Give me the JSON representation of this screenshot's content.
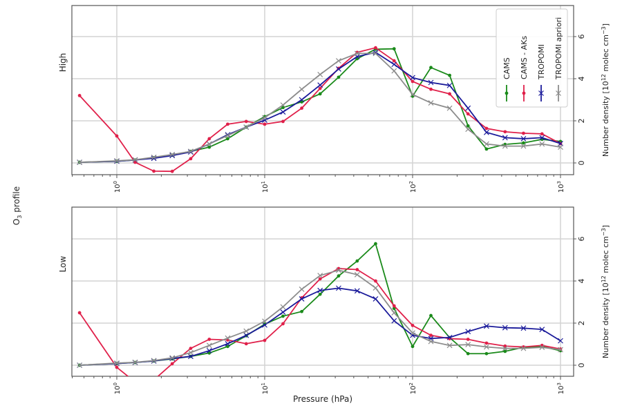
{
  "chart_data": [
    {
      "type": "line",
      "panel_label": "High",
      "xlabel": "",
      "ylabel": "Number density [10^12 molec cm^-3]",
      "ylabel_parts": {
        "base": "Number density [10",
        "exp1": "12",
        "mid": " molec cm",
        "exp2": "−3",
        "end": "]"
      },
      "x_scale": "log",
      "xlim": [
        0.5,
        1230
      ],
      "ylim": [
        -0.55,
        7.5
      ],
      "x_ticks": [
        {
          "base": "10",
          "exp": "0",
          "value": 1
        },
        {
          "base": "10",
          "exp": "1",
          "value": 10
        },
        {
          "base": "10",
          "exp": "2",
          "value": 100
        },
        {
          "base": "10",
          "exp": "3",
          "value": 1000
        }
      ],
      "y_ticks": [
        0,
        2,
        4,
        6
      ],
      "grid": true,
      "legend": "top-right",
      "x": [
        0.56,
        1,
        1.33,
        1.78,
        2.37,
        3.16,
        4.22,
        5.62,
        7.5,
        10,
        13.3,
        17.8,
        23.7,
        31.6,
        42.2,
        56.2,
        75,
        100,
        133,
        178,
        237,
        316,
        422,
        562,
        750,
        1000
      ],
      "series": [
        {
          "name": "CAMS",
          "color": "#1a8a1a",
          "marker": "dot",
          "values": [
            0.03,
            0.08,
            0.14,
            0.25,
            0.37,
            0.55,
            0.75,
            1.15,
            1.7,
            2.2,
            2.63,
            2.9,
            3.28,
            4.07,
            4.95,
            5.4,
            5.42,
            3.17,
            4.53,
            4.16,
            1.76,
            0.66,
            0.88,
            0.95,
            1.12,
            1.02
          ]
        },
        {
          "name": "CAMS - AKs",
          "color": "#e0204a",
          "marker": "dot",
          "values": [
            3.2,
            1.28,
            0.03,
            -0.39,
            -0.4,
            0.2,
            1.15,
            1.84,
            1.97,
            1.84,
            1.97,
            2.6,
            3.54,
            4.49,
            5.25,
            5.47,
            4.85,
            3.87,
            3.5,
            3.28,
            2.33,
            1.64,
            1.48,
            1.41,
            1.38,
            0.92
          ]
        },
        {
          "name": "TROPOMI",
          "color": "#1a1a9a",
          "marker": "x",
          "values": [
            0.03,
            0.08,
            0.14,
            0.22,
            0.35,
            0.52,
            0.9,
            1.34,
            1.7,
            2.03,
            2.42,
            3.0,
            3.7,
            4.46,
            5.05,
            5.25,
            4.68,
            4.05,
            3.82,
            3.68,
            2.6,
            1.45,
            1.2,
            1.15,
            1.2,
            0.92
          ]
        },
        {
          "name": "TROPOMI apriori",
          "color": "#8c8c8c",
          "marker": "x",
          "values": [
            0.03,
            0.1,
            0.15,
            0.27,
            0.4,
            0.55,
            0.9,
            1.3,
            1.7,
            2.15,
            2.75,
            3.5,
            4.2,
            4.85,
            5.2,
            5.2,
            4.37,
            3.25,
            2.85,
            2.6,
            1.6,
            0.9,
            0.8,
            0.8,
            0.9,
            0.75
          ]
        }
      ]
    },
    {
      "type": "line",
      "panel_label": "Low",
      "xlabel": "Pressure (hPa)",
      "ylabel": "Number density [10^12 molec cm^-3]",
      "ylabel_parts": {
        "base": "Number density [10",
        "exp1": "12",
        "mid": " molec cm",
        "exp2": "−3",
        "end": "]"
      },
      "x_scale": "log",
      "xlim": [
        0.5,
        1230
      ],
      "ylim": [
        -0.55,
        7.5
      ],
      "x_ticks": [
        {
          "base": "10",
          "exp": "0",
          "value": 1
        },
        {
          "base": "10",
          "exp": "1",
          "value": 10
        },
        {
          "base": "10",
          "exp": "2",
          "value": 100
        },
        {
          "base": "10",
          "exp": "3",
          "value": 1000
        }
      ],
      "y_ticks": [
        0,
        2,
        4,
        6
      ],
      "grid": true,
      "x": [
        0.56,
        1,
        1.33,
        1.78,
        2.37,
        3.16,
        4.22,
        5.62,
        7.5,
        10,
        13.3,
        17.8,
        23.7,
        31.6,
        42.2,
        56.2,
        75,
        100,
        133,
        178,
        237,
        316,
        422,
        562,
        750,
        1000
      ],
      "series": [
        {
          "name": "CAMS",
          "color": "#1a8a1a",
          "marker": "dot",
          "values": [
            0.0,
            0.08,
            0.13,
            0.2,
            0.3,
            0.42,
            0.58,
            0.89,
            1.4,
            1.95,
            2.33,
            2.55,
            3.37,
            4.24,
            4.95,
            5.77,
            2.7,
            0.89,
            2.36,
            1.31,
            0.55,
            0.55,
            0.66,
            0.85,
            0.89,
            0.69
          ]
        },
        {
          "name": "CAMS - AKs",
          "color": "#e0204a",
          "marker": "dot",
          "values": [
            2.49,
            -0.1,
            -0.8,
            -0.7,
            0.07,
            0.8,
            1.23,
            1.2,
            1.02,
            1.18,
            1.97,
            3.2,
            4.1,
            4.59,
            4.54,
            4.0,
            2.82,
            1.89,
            1.42,
            1.26,
            1.23,
            1.05,
            0.91,
            0.87,
            0.94,
            0.77
          ]
        },
        {
          "name": "TROPOMI",
          "color": "#1a1a9a",
          "marker": "x",
          "values": [
            0.0,
            0.08,
            0.13,
            0.2,
            0.32,
            0.42,
            0.69,
            1.02,
            1.42,
            1.91,
            2.52,
            3.15,
            3.55,
            3.66,
            3.53,
            3.15,
            2.11,
            1.42,
            1.27,
            1.32,
            1.6,
            1.86,
            1.78,
            1.76,
            1.7,
            1.16
          ]
        },
        {
          "name": "TROPOMI apriori",
          "color": "#8c8c8c",
          "marker": "x",
          "values": [
            0.0,
            0.1,
            0.14,
            0.22,
            0.35,
            0.6,
            0.94,
            1.29,
            1.62,
            2.09,
            2.77,
            3.61,
            4.26,
            4.51,
            4.3,
            3.67,
            2.49,
            1.53,
            1.13,
            0.94,
            0.98,
            0.87,
            0.8,
            0.8,
            0.85,
            0.74
          ]
        }
      ]
    }
  ],
  "figure": {
    "row_label_base": "O",
    "row_label_sub": "3",
    "row_label_rest": " profile"
  }
}
